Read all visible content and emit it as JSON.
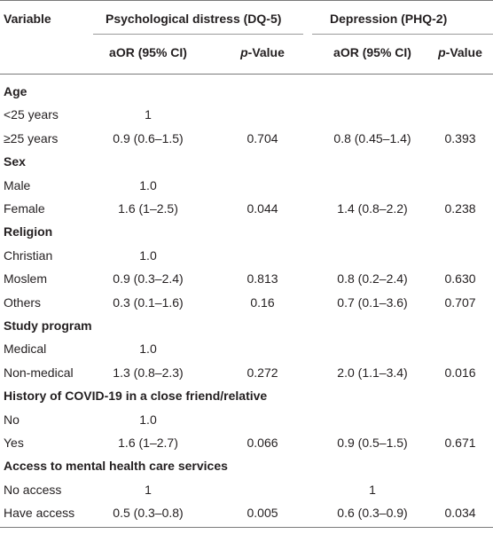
{
  "header": {
    "variable": "Variable",
    "group1": "Psychological distress (DQ-5)",
    "group2": "Depression (PHQ-2)",
    "aor1": "aOR (95% CI)",
    "p_prefix1": "p",
    "p_suffix1": "-Value",
    "aor2": "aOR (95% CI)",
    "p_prefix2": "p",
    "p_suffix2": "-Value"
  },
  "sections": [
    {
      "title": "Age",
      "rows": [
        {
          "label": "<25 years",
          "aor1": "1",
          "p1": "",
          "aor2": "",
          "p2": ""
        },
        {
          "label": "≥25 years",
          "aor1": "0.9 (0.6–1.5)",
          "p1": "0.704",
          "aor2": "0.8 (0.45–1.4)",
          "p2": "0.393"
        }
      ]
    },
    {
      "title": "Sex",
      "rows": [
        {
          "label": "Male",
          "aor1": "1.0",
          "p1": "",
          "aor2": "",
          "p2": ""
        },
        {
          "label": "Female",
          "aor1": "1.6 (1–2.5)",
          "p1": "0.044",
          "aor2": "1.4 (0.8–2.2)",
          "p2": "0.238"
        }
      ]
    },
    {
      "title": "Religion",
      "rows": [
        {
          "label": "Christian",
          "aor1": "1.0",
          "p1": "",
          "aor2": "",
          "p2": ""
        },
        {
          "label": "Moslem",
          "aor1": "0.9 (0.3–2.4)",
          "p1": "0.813",
          "aor2": "0.8 (0.2–2.4)",
          "p2": "0.630"
        },
        {
          "label": "Others",
          "aor1": "0.3 (0.1–1.6)",
          "p1": "0.16",
          "aor2": "0.7 (0.1–3.6)",
          "p2": "0.707"
        }
      ]
    },
    {
      "title": "Study program",
      "rows": [
        {
          "label": "Medical",
          "aor1": "1.0",
          "p1": "",
          "aor2": "",
          "p2": ""
        },
        {
          "label": "Non-medical",
          "aor1": "1.3 (0.8–2.3)",
          "p1": "0.272",
          "aor2": "2.0 (1.1–3.4)",
          "p2": "0.016"
        }
      ]
    },
    {
      "title": "History of COVID-19 in a close friend/relative",
      "rows": [
        {
          "label": "No",
          "aor1": "1.0",
          "p1": "",
          "aor2": "",
          "p2": ""
        },
        {
          "label": "Yes",
          "aor1": "1.6 (1–2.7)",
          "p1": "0.066",
          "aor2": "0.9 (0.5–1.5)",
          "p2": "0.671"
        }
      ]
    },
    {
      "title": "Access to mental health care services",
      "rows": [
        {
          "label": "No access",
          "aor1": "1",
          "p1": "",
          "aor2": "1",
          "p2": ""
        },
        {
          "label": "Have access",
          "aor1": "0.5 (0.3–0.8)",
          "p1": "0.005",
          "aor2": "0.6 (0.3–0.9)",
          "p2": "0.034"
        }
      ]
    }
  ]
}
